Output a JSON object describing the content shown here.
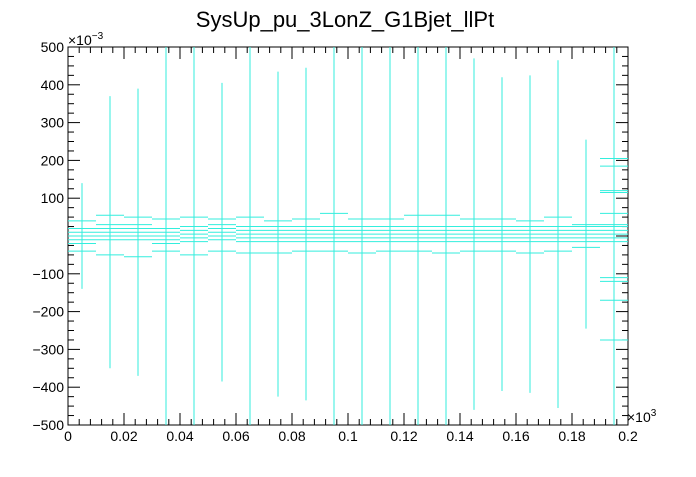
{
  "chart_data": {
    "type": "scatter",
    "title": "SysUp_pu_3LonZ_G1Bjet_llPt",
    "xlabel": "",
    "ylabel": "",
    "x_exponent_label": "×10",
    "x_exponent_power": "3",
    "y_exponent_label": "×10",
    "y_exponent_power": "−3",
    "xlim": [
      0,
      200
    ],
    "ylim": [
      -500,
      500
    ],
    "x_ticks": [
      0,
      20,
      40,
      60,
      80,
      100,
      120,
      140,
      160,
      180,
      200
    ],
    "x_tick_labels": [
      "0",
      "0.02",
      "0.04",
      "0.06",
      "0.08",
      "0.1",
      "0.12",
      "0.14",
      "0.16",
      "0.18",
      "0.2"
    ],
    "y_ticks": [
      -500,
      -400,
      -300,
      -200,
      -100,
      100,
      200,
      300,
      400,
      500
    ],
    "y_tick_labels": [
      "−500",
      "−400",
      "−300",
      "−200",
      "−100",
      "100",
      "200",
      "300",
      "400",
      "500"
    ],
    "grid": false,
    "legend": "none",
    "color": "#33eedd",
    "series": [
      {
        "points": [
          {
            "x": 5,
            "y": 0,
            "err": 140
          },
          {
            "x": 15,
            "y": 10,
            "err": 360
          },
          {
            "x": 25,
            "y": 10,
            "err": 380
          },
          {
            "x": 35,
            "y": 0,
            "err": 520
          },
          {
            "x": 45,
            "y": 5,
            "err": 520
          },
          {
            "x": 55,
            "y": 10,
            "err": 395
          },
          {
            "x": 65,
            "y": 5,
            "err": 520
          },
          {
            "x": 75,
            "y": 5,
            "err": 430
          },
          {
            "x": 85,
            "y": 5,
            "err": 440
          },
          {
            "x": 95,
            "y": 5,
            "err": 520
          },
          {
            "x": 105,
            "y": 5,
            "err": 520
          },
          {
            "x": 115,
            "y": 5,
            "err": 520
          },
          {
            "x": 125,
            "y": 5,
            "err": 520
          },
          {
            "x": 135,
            "y": 5,
            "err": 520
          },
          {
            "x": 145,
            "y": 5,
            "err": 465
          },
          {
            "x": 155,
            "y": 5,
            "err": 415
          },
          {
            "x": 165,
            "y": 5,
            "err": 420
          },
          {
            "x": 175,
            "y": 5,
            "err": 460
          },
          {
            "x": 185,
            "y": 5,
            "err": 250
          },
          {
            "x": 195,
            "y": 5,
            "err": 520
          }
        ],
        "extra_markers": [
          {
            "x": 5,
            "y": 40
          },
          {
            "x": 5,
            "y": -40
          },
          {
            "x": 15,
            "y": 55
          },
          {
            "x": 15,
            "y": -50
          },
          {
            "x": 25,
            "y": 50
          },
          {
            "x": 25,
            "y": -55
          },
          {
            "x": 35,
            "y": 45
          },
          {
            "x": 35,
            "y": -40
          },
          {
            "x": 45,
            "y": 50
          },
          {
            "x": 45,
            "y": -50
          },
          {
            "x": 55,
            "y": 45
          },
          {
            "x": 55,
            "y": -40
          },
          {
            "x": 65,
            "y": 50
          },
          {
            "x": 65,
            "y": -45
          },
          {
            "x": 75,
            "y": 40
          },
          {
            "x": 75,
            "y": -45
          },
          {
            "x": 85,
            "y": 45
          },
          {
            "x": 85,
            "y": -40
          },
          {
            "x": 95,
            "y": 60
          },
          {
            "x": 95,
            "y": -40
          },
          {
            "x": 105,
            "y": 45
          },
          {
            "x": 105,
            "y": -45
          },
          {
            "x": 115,
            "y": 45
          },
          {
            "x": 115,
            "y": -40
          },
          {
            "x": 125,
            "y": 55
          },
          {
            "x": 125,
            "y": -40
          },
          {
            "x": 135,
            "y": 55
          },
          {
            "x": 135,
            "y": -45
          },
          {
            "x": 145,
            "y": 45
          },
          {
            "x": 145,
            "y": -40
          },
          {
            "x": 155,
            "y": 45
          },
          {
            "x": 155,
            "y": -40
          },
          {
            "x": 165,
            "y": 40
          },
          {
            "x": 165,
            "y": -45
          },
          {
            "x": 175,
            "y": 50
          },
          {
            "x": 175,
            "y": -40
          },
          {
            "x": 185,
            "y": 30
          },
          {
            "x": 185,
            "y": -30
          },
          {
            "x": 195,
            "y": 205
          },
          {
            "x": 195,
            "y": 185
          },
          {
            "x": 195,
            "y": 120
          },
          {
            "x": 195,
            "y": 115
          },
          {
            "x": 195,
            "y": 60
          },
          {
            "x": 195,
            "y": 30
          },
          {
            "x": 195,
            "y": -110
          },
          {
            "x": 195,
            "y": -120
          },
          {
            "x": 195,
            "y": -170
          },
          {
            "x": 195,
            "y": -275
          }
        ]
      }
    ]
  }
}
